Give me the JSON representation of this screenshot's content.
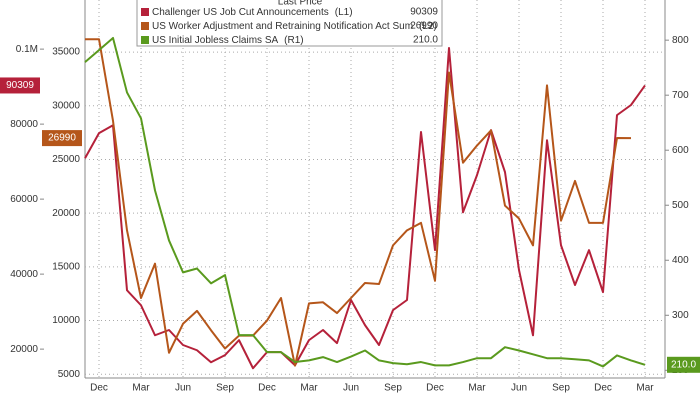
{
  "chart_data": {
    "type": "line",
    "legend_title": "Last Price",
    "categories": [
      null,
      "Dec",
      null,
      null,
      "Mar",
      null,
      null,
      "Jun",
      null,
      null,
      "Sep",
      null,
      null,
      "Dec",
      null,
      null,
      "Mar",
      null,
      null,
      "Jun",
      null,
      null,
      "Sep",
      null,
      null,
      "Dec",
      null,
      null,
      "Mar",
      null,
      null,
      "Jun",
      null,
      null,
      "Sep",
      null,
      null,
      "Dec",
      null,
      null,
      "Mar"
    ],
    "ylim": [
      12300,
      113100
    ],
    "yticks": [
      20000,
      40000,
      60000,
      80000,
      {
        "value": 100000,
        "label": "0.1M"
      }
    ],
    "y3lim": [
      4650,
      39850
    ],
    "y3ticks": [
      5000,
      10000,
      15000,
      20000,
      25000,
      30000,
      35000
    ],
    "y2lim": [
      186,
      873
    ],
    "y2ticks": [
      200,
      300,
      400,
      500,
      600,
      700,
      800
    ],
    "grid": true,
    "legend": "top",
    "series": [
      {
        "name": "Challenger US Job Cut Announcements",
        "legend_tag": "(L1)",
        "axis": "y",
        "color": "#b5213a",
        "values": [
          70900,
          77600,
          79700,
          35700,
          31700,
          23700,
          25100,
          21100,
          19700,
          16500,
          18400,
          22400,
          14900,
          19200,
          19200,
          15700,
          22400,
          25100,
          21600,
          33100,
          26400,
          21100,
          30400,
          33100,
          77900,
          46400,
          100300,
          56500,
          66400,
          78400,
          67200,
          41100,
          23700,
          75700,
          47700,
          37100,
          46400,
          35200,
          82400,
          85100,
          90309
        ]
      },
      {
        "name": "US Worker Adjustment and Retraining Notification Act Sum",
        "legend_tag": "(L2)",
        "axis": "y3",
        "color": "#b5561a",
        "values": [
          36200,
          36200,
          28600,
          18400,
          12100,
          15300,
          7000,
          9700,
          10900,
          9100,
          7400,
          8600,
          8600,
          10000,
          12100,
          5800,
          11600,
          11700,
          10700,
          12100,
          13500,
          13400,
          17000,
          18400,
          19100,
          13700,
          33100,
          24700,
          26300,
          27700,
          20700,
          19500,
          17000,
          31900,
          19300,
          23000,
          19100,
          19100,
          27000,
          26990,
          null
        ]
      },
      {
        "name": "US Initial Jobless Claims SA",
        "legend_tag": "(R1)",
        "axis": "y2",
        "color": "#5a9a1e",
        "values": [
          760,
          782,
          804,
          705,
          658,
          527,
          436,
          378,
          385,
          358,
          373,
          264,
          264,
          233,
          233,
          215,
          218,
          224,
          215,
          225,
          236,
          218,
          213,
          211,
          215,
          209,
          209,
          215,
          222,
          222,
          242,
          236,
          229,
          222,
          222,
          220,
          218,
          207,
          227,
          218,
          210
        ],
        "value_labels": [
          null,
          null,
          null,
          null,
          null,
          null,
          null,
          null,
          null,
          null,
          null,
          null,
          null,
          null,
          null,
          null,
          null,
          null,
          null,
          null,
          null,
          null,
          null,
          null,
          null,
          null,
          null,
          null,
          null,
          null,
          null,
          null,
          null,
          null,
          null,
          null,
          null,
          null,
          null,
          null,
          "210.0"
        ]
      }
    ]
  }
}
